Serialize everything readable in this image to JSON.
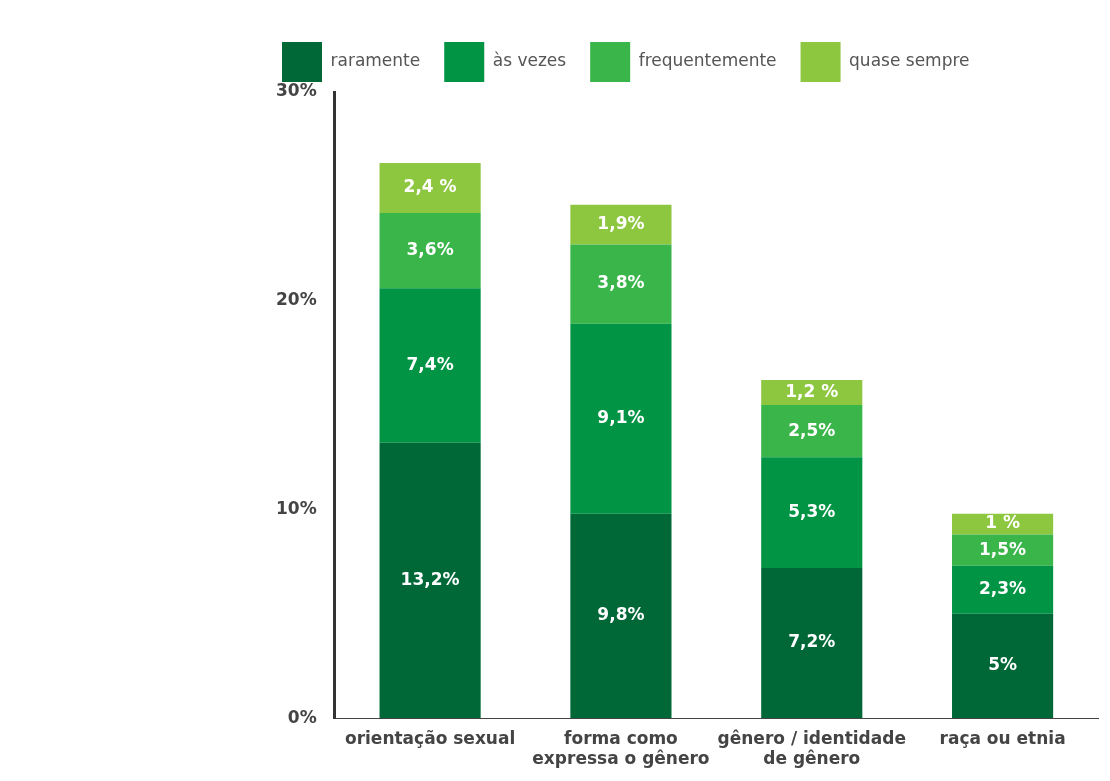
{
  "chart_data": {
    "type": "bar",
    "stacked": true,
    "categories": [
      "orientação sexual",
      "forma como expressa o gênero",
      "gênero / identidade de gênero",
      "raça ou etnia"
    ],
    "series": [
      {
        "name": "raramente",
        "color": "#006837",
        "values": [
          13.2,
          9.8,
          7.2,
          5
        ],
        "value_labels": [
          "13,2%",
          "9,8%",
          "7,2%",
          "5%"
        ]
      },
      {
        "name": "às vezes",
        "color": "#009444",
        "values": [
          7.4,
          9.1,
          5.3,
          2.3
        ],
        "value_labels": [
          "7,4%",
          "9,1%",
          "5,3%",
          "2,3%"
        ]
      },
      {
        "name": "frequentemente",
        "color": "#39b54a",
        "values": [
          3.6,
          3.8,
          2.5,
          1.5
        ],
        "value_labels": [
          "3,6%",
          "3,8%",
          "2,5%",
          "1,5%"
        ]
      },
      {
        "name": "quase sempre",
        "color": "#8dc63f",
        "values": [
          2.4,
          1.9,
          1.2,
          1
        ],
        "value_labels": [
          "2,4 %",
          "1,9%",
          "1,2 %",
          "1 %"
        ]
      }
    ],
    "ylim": [
      0,
      30
    ],
    "yticks": [
      {
        "value": 0,
        "label": "0%"
      },
      {
        "value": 10,
        "label": "10%"
      },
      {
        "value": 20,
        "label": "20%"
      },
      {
        "value": 30,
        "label": "30%"
      }
    ],
    "legend": "top left"
  }
}
